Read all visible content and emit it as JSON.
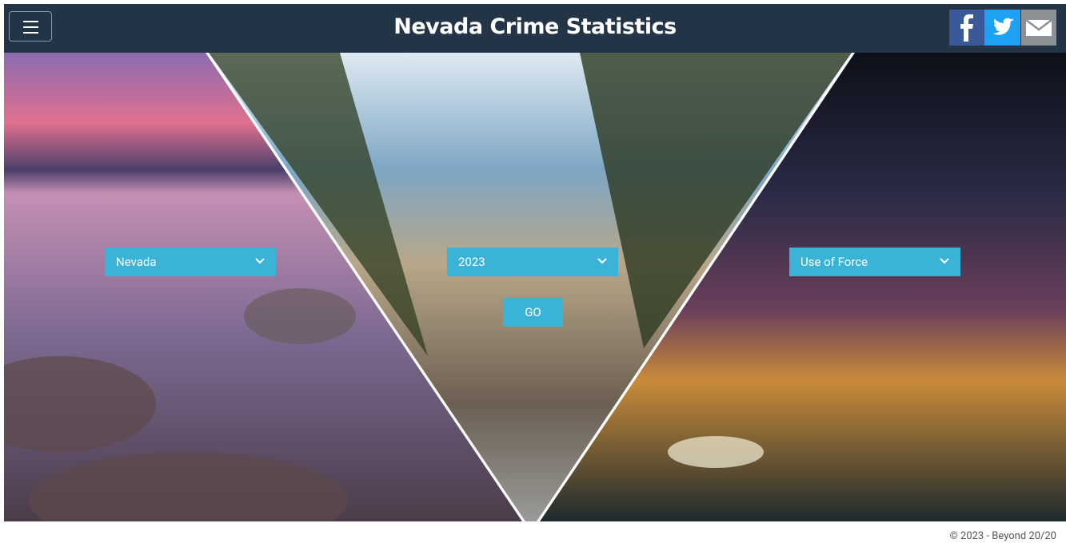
{
  "header": {
    "title": "Nevada Crime Statistics"
  },
  "form": {
    "region": "Nevada",
    "year": "2023",
    "topic": "Use of Force",
    "submit": "GO"
  },
  "footer": {
    "copyright": "© 2023 - Beyond 20/20"
  }
}
